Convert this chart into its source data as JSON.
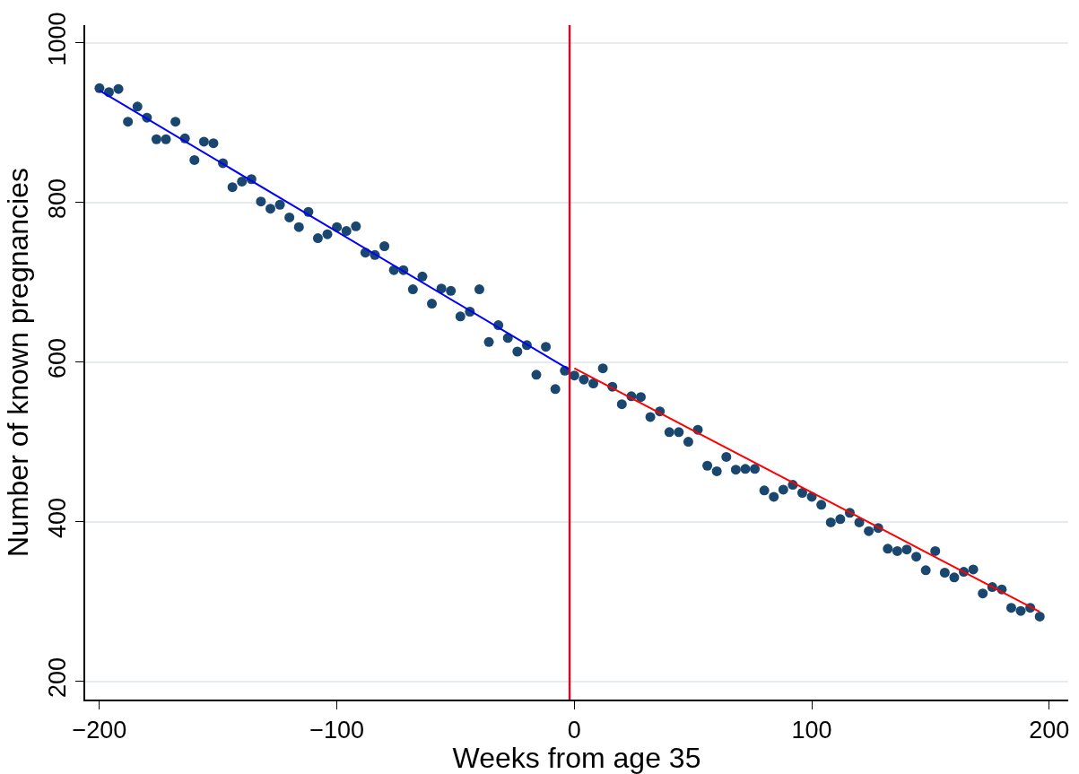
{
  "chart_data": {
    "type": "scatter",
    "xlabel": "Weeks from age 35",
    "ylabel": "Number of known pregnancies",
    "xlim": [
      -206,
      208
    ],
    "xticks": [
      {
        "value": -200,
        "label": "−200"
      },
      {
        "value": -100,
        "label": "−100"
      },
      0,
      100,
      200
    ],
    "ylim": [
      177,
      1022
    ],
    "yticks": [
      200,
      400,
      600,
      800,
      1000
    ],
    "grid": "y",
    "marker": "circle",
    "ref_lines": [
      {
        "axis": "x",
        "value": -2,
        "color": "#c8102e"
      }
    ],
    "series": [
      {
        "color": "#1a476f",
        "x": [
          -200,
          -196,
          -192,
          -188,
          -184,
          -180,
          -176,
          -172,
          -168,
          -164,
          -160,
          -156,
          -152,
          -148,
          -144,
          -140,
          -136,
          -132,
          -128,
          -124,
          -120,
          -116,
          -112,
          -108,
          -104,
          -100,
          -96,
          -92,
          -88,
          -84,
          -80,
          -76,
          -72,
          -68,
          -64,
          -60,
          -56,
          -52,
          -48,
          -44,
          -40,
          -36,
          -32,
          -28,
          -24,
          -20,
          -16,
          -12,
          -8,
          -4,
          0,
          4,
          8,
          12,
          16,
          20,
          24,
          28,
          32,
          36,
          40,
          44,
          48,
          52,
          56,
          60,
          64,
          68,
          72,
          76,
          80,
          84,
          88,
          92,
          96,
          100,
          104,
          108,
          112,
          116,
          120,
          124,
          128,
          132,
          136,
          140,
          144,
          148,
          152,
          156,
          160,
          164,
          168,
          172,
          176,
          180,
          184,
          188,
          192,
          196
        ],
        "values": [
          943,
          938,
          942,
          901,
          920,
          906,
          879,
          879,
          901,
          880,
          853,
          876,
          874,
          849,
          819,
          826,
          829,
          801,
          792,
          797,
          781,
          769,
          788,
          755,
          760,
          769,
          764,
          770,
          737,
          734,
          745,
          715,
          715,
          691,
          707,
          673,
          692,
          689,
          657,
          663,
          691,
          625,
          646,
          630,
          613,
          621,
          584,
          619,
          566,
          589,
          583,
          578,
          573,
          592,
          569,
          547,
          557,
          556,
          531,
          538,
          512,
          512,
          500,
          515,
          470,
          463,
          481,
          465,
          466,
          466,
          439,
          431,
          440,
          446,
          436,
          431,
          421,
          399,
          403,
          411,
          399,
          388,
          392,
          366,
          363,
          365,
          356,
          339,
          363,
          336,
          330,
          337,
          340,
          310,
          318,
          315,
          292,
          288,
          292,
          281
        ]
      },
      {
        "type": "line",
        "marker": "none",
        "color": "#0000ff",
        "x": [
          -200,
          -2
        ],
        "values": [
          940,
          590
        ]
      },
      {
        "type": "line",
        "marker": "none",
        "color": "#ff0000",
        "x": [
          0,
          196
        ],
        "values": [
          592,
          287
        ]
      }
    ]
  }
}
